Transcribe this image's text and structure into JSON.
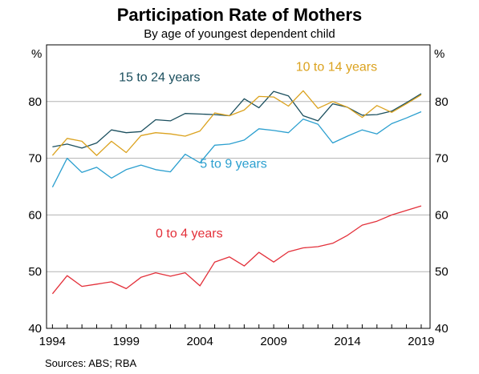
{
  "chart_data": {
    "type": "line",
    "title": "Participation Rate of Mothers",
    "subtitle": "By age of youngest dependent child",
    "y_unit_label": "%",
    "ylim": [
      40,
      90
    ],
    "y_ticks": [
      "40",
      "50",
      "60",
      "70",
      "80"
    ],
    "xlim": [
      1993.6,
      2019.6
    ],
    "x_ticks": [
      "1994",
      "1999",
      "2004",
      "2009",
      "2014",
      "2019"
    ],
    "grid": true,
    "x": [
      1994,
      1995,
      1996,
      1997,
      1998,
      1999,
      2000,
      2001,
      2002,
      2003,
      2004,
      2005,
      2006,
      2007,
      2008,
      2009,
      2010,
      2011,
      2012,
      2013,
      2014,
      2015,
      2016,
      2017,
      2018,
      2019
    ],
    "series": [
      {
        "name": "15 to 24 years",
        "color": "#1b4f5e",
        "values": [
          72.0,
          72.5,
          71.8,
          72.7,
          75.0,
          74.5,
          74.7,
          76.8,
          76.6,
          77.9,
          77.8,
          77.7,
          77.5,
          80.5,
          78.9,
          81.8,
          81.0,
          77.5,
          76.6,
          79.6,
          79.0,
          77.6,
          77.7,
          78.3,
          79.8,
          81.4
        ]
      },
      {
        "name": "10 to 14 years",
        "color": "#dba21e",
        "values": [
          70.5,
          73.5,
          73.0,
          70.5,
          73.0,
          71.0,
          74.0,
          74.5,
          74.3,
          73.9,
          74.8,
          78.0,
          77.5,
          78.5,
          80.9,
          80.8,
          79.2,
          81.9,
          78.8,
          80.0,
          79.0,
          77.2,
          79.3,
          78.1,
          79.6,
          81.2
        ]
      },
      {
        "name": "5 to 9 years",
        "color": "#2b9fcf",
        "values": [
          64.9,
          70.0,
          67.5,
          68.4,
          66.5,
          68.0,
          68.8,
          68.0,
          67.6,
          70.7,
          69.2,
          72.3,
          72.5,
          73.2,
          75.2,
          74.9,
          74.5,
          76.9,
          76.0,
          72.7,
          73.9,
          75.0,
          74.3,
          76.1,
          77.1,
          78.2
        ]
      },
      {
        "name": "0 to 4 years",
        "color": "#e3303a",
        "values": [
          46.1,
          49.3,
          47.4,
          47.8,
          48.2,
          47.0,
          49.0,
          49.8,
          49.2,
          49.8,
          47.5,
          51.7,
          52.6,
          51.0,
          53.4,
          51.7,
          53.5,
          54.2,
          54.4,
          55.0,
          56.4,
          58.2,
          58.9,
          60.0,
          60.8,
          61.6
        ]
      }
    ]
  },
  "source": "Sources:   ABS; RBA"
}
